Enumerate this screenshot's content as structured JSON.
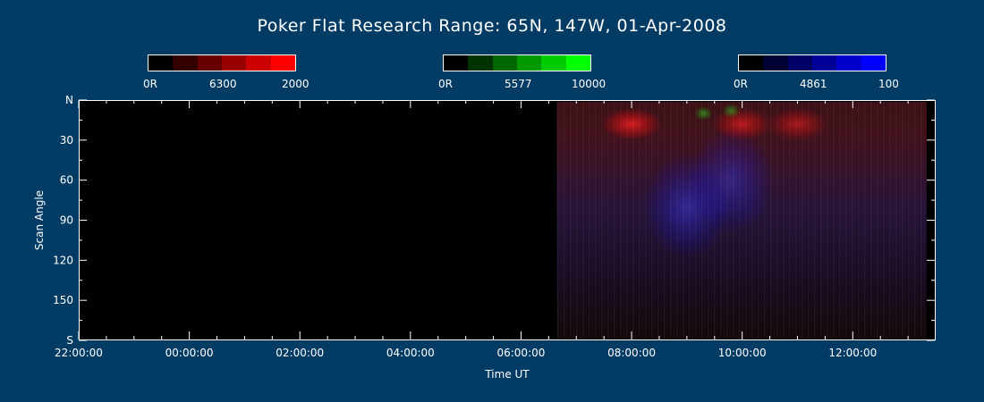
{
  "title": "Poker Flat Research Range: 65N, 147W, 01-Apr-2008",
  "colorbars": [
    {
      "min_label": "0R",
      "wavelength": "6300",
      "max_label": "2000",
      "colors": [
        "#000000",
        "#330000",
        "#660000",
        "#990000",
        "#cc0000",
        "#ff0000"
      ]
    },
    {
      "min_label": "0R",
      "wavelength": "5577",
      "max_label": "10000",
      "colors": [
        "#000000",
        "#003300",
        "#006600",
        "#009900",
        "#00cc00",
        "#00ff00"
      ]
    },
    {
      "min_label": "0R",
      "wavelength": "4861",
      "max_label": "100",
      "colors": [
        "#000000",
        "#000033",
        "#000066",
        "#000099",
        "#0000cc",
        "#0000ff"
      ]
    }
  ],
  "chart_data": {
    "type": "heatmap",
    "xlabel": "Time UT",
    "ylabel": "Scan Angle",
    "x_tick_labels": [
      "22:00:00",
      "00:00:00",
      "02:00:00",
      "04:00:00",
      "06:00:00",
      "08:00:00",
      "10:00:00",
      "12:00:00"
    ],
    "x_tick_hours": [
      0,
      2,
      4,
      6,
      8,
      10,
      12,
      14
    ],
    "x_range_hours": [
      0,
      15.5
    ],
    "y_tick_labels": [
      "N",
      "30",
      "60",
      "90",
      "120",
      "150",
      "S"
    ],
    "y_tick_values": [
      0,
      30,
      60,
      90,
      120,
      150,
      180
    ],
    "y_range": [
      0,
      180
    ],
    "data_start_hour": 8.65,
    "grid": false,
    "channels": [
      "6300 red",
      "5577 green",
      "4861 blue"
    ],
    "features": [
      {
        "hour": 10.0,
        "angle": 18,
        "channel": "red",
        "intensity": 0.85
      },
      {
        "hour": 12.0,
        "angle": 18,
        "channel": "red",
        "intensity": 0.7
      },
      {
        "hour": 13.0,
        "angle": 18,
        "channel": "red",
        "intensity": 0.6
      },
      {
        "hour": 11.3,
        "angle": 10,
        "channel": "green",
        "intensity": 0.5
      },
      {
        "hour": 11.8,
        "angle": 8,
        "channel": "green",
        "intensity": 0.45
      },
      {
        "hour": 11.0,
        "angle": 80,
        "channel": "blue",
        "intensity": 0.5
      },
      {
        "hour": 11.8,
        "angle": 60,
        "channel": "blue",
        "intensity": 0.45
      }
    ]
  },
  "colors": {
    "background": "#023c64",
    "plot": "#000000",
    "axes": "#ffffff"
  }
}
